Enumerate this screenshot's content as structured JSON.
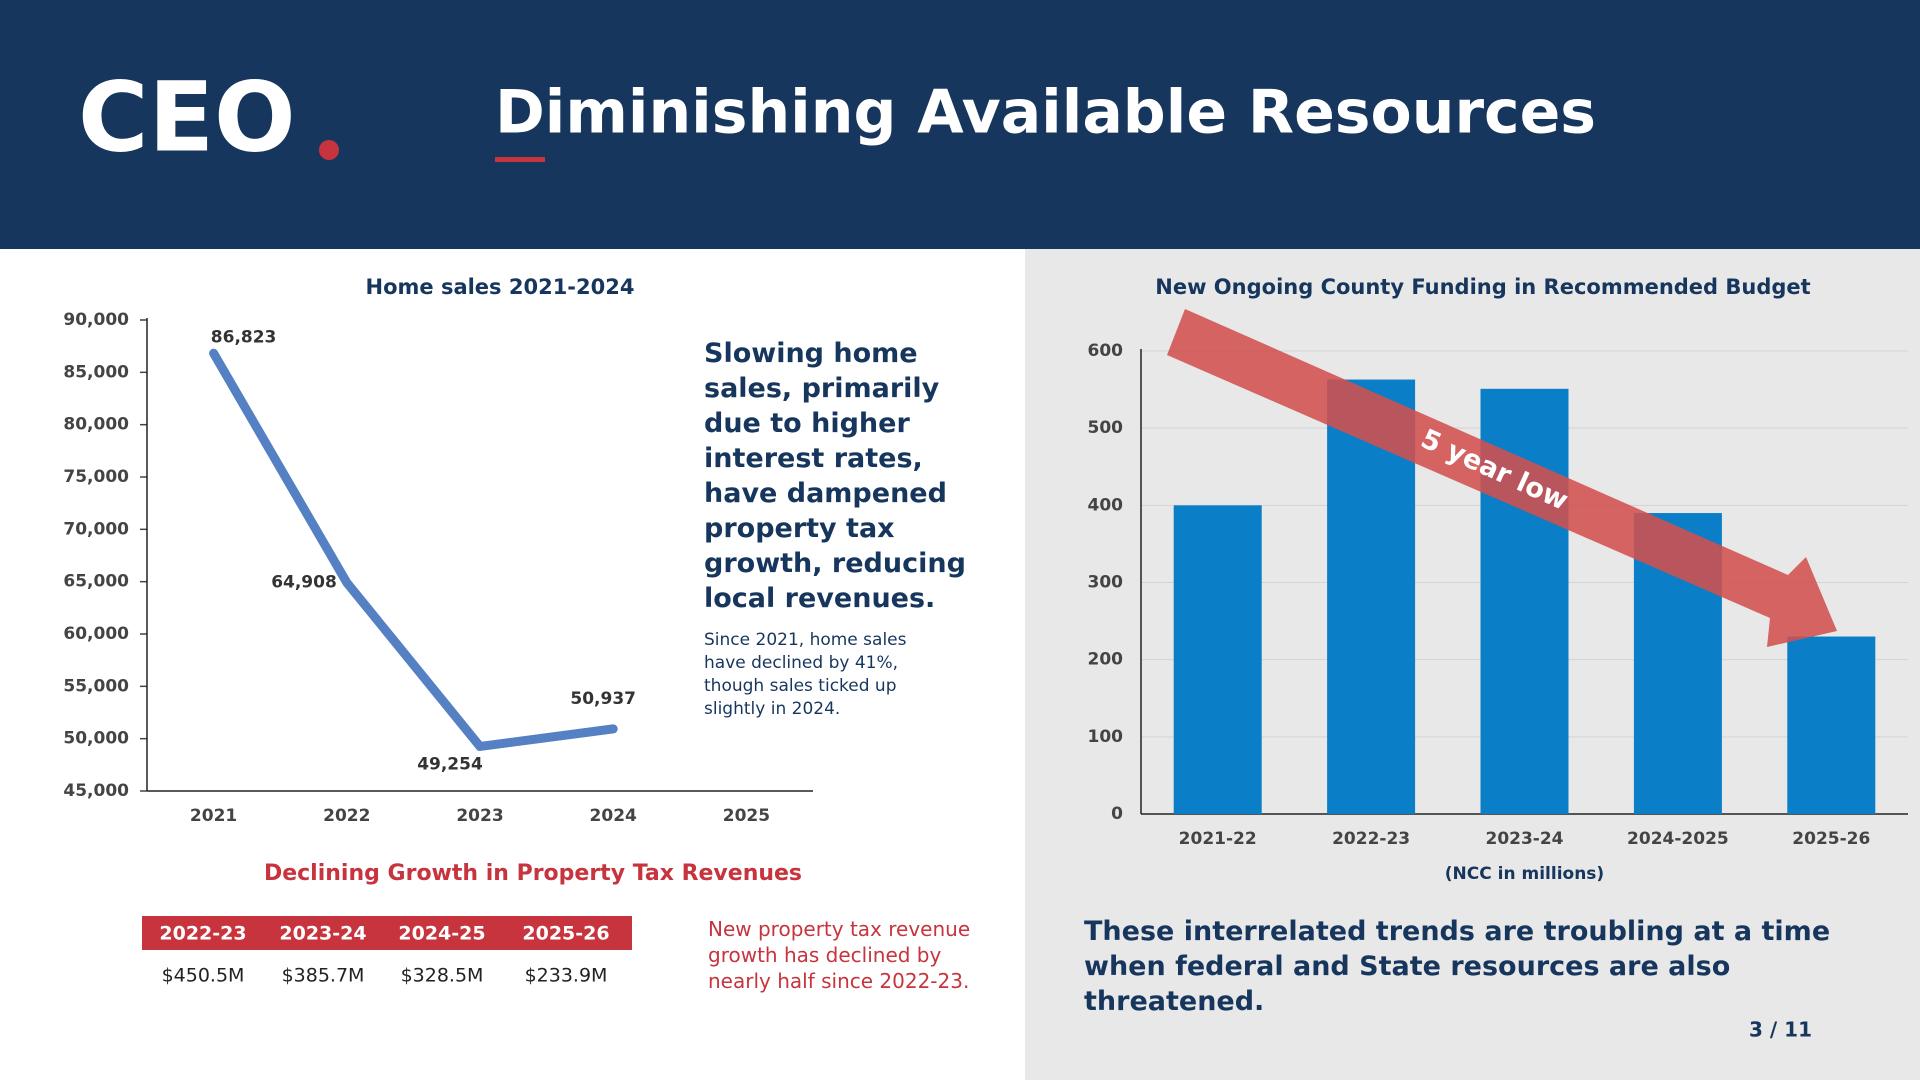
{
  "header": {
    "logo": "CEO",
    "title": "Diminishing Available Resources"
  },
  "chart_data": [
    {
      "type": "line",
      "title": "Home sales 2021-2024",
      "color": "#5580c4",
      "categories": [
        "2021",
        "2022",
        "2023",
        "2024",
        "2025"
      ],
      "values": [
        86823,
        64908,
        49254,
        50937,
        null
      ],
      "value_labels": [
        "86,823",
        "64,908",
        "49,254",
        "50,937",
        null
      ],
      "ylim": [
        45000,
        90000
      ],
      "yticks": [
        {
          "value": 45000,
          "label": "45,000"
        },
        {
          "value": 50000,
          "label": "50,000"
        },
        {
          "value": 55000,
          "label": "55,000"
        },
        {
          "value": 60000,
          "label": "60,000"
        },
        {
          "value": 65000,
          "label": "65,000"
        },
        {
          "value": 70000,
          "label": "70,000"
        },
        {
          "value": 75000,
          "label": "75,000"
        },
        {
          "value": 80000,
          "label": "80,000"
        },
        {
          "value": 85000,
          "label": "85,000"
        },
        {
          "value": 90000,
          "label": "90,000"
        }
      ],
      "grid": false
    },
    {
      "type": "bar",
      "title": "New Ongoing County Funding in Recommended Budget",
      "color": "#0a7fc7",
      "categories": [
        "2021-22",
        "2022-23",
        "2023-24",
        "2024-2025",
        "2025-26"
      ],
      "values": [
        400,
        563,
        551,
        390,
        230
      ],
      "xlabel": "(NCC in millions)",
      "annotation": "5 year low",
      "ylim": [
        0,
        600
      ],
      "yticks": [
        0,
        100,
        200,
        300,
        400,
        500,
        600
      ],
      "grid": true
    }
  ],
  "side_text": {
    "heading": "Slowing home sales, primarily due to higher interest rates, have dampened property tax growth, reducing local revenues.",
    "body": "Since 2021, home sales have declined by 41%, though sales ticked up slightly in 2024."
  },
  "table": {
    "title": "Declining Growth in Property Tax Revenues",
    "headers": [
      "2022-23",
      "2023-24",
      "2024-25",
      "2025-26"
    ],
    "rows": [
      [
        "$450.5M",
        "$385.7M",
        "$328.5M",
        "$233.9M"
      ]
    ],
    "note": "New property tax revenue growth has declined by nearly half since 2022-23."
  },
  "footer": {
    "text": "These interrelated trends are troubling at a time when federal and State resources are also threatened.",
    "page": "3 / 11"
  }
}
